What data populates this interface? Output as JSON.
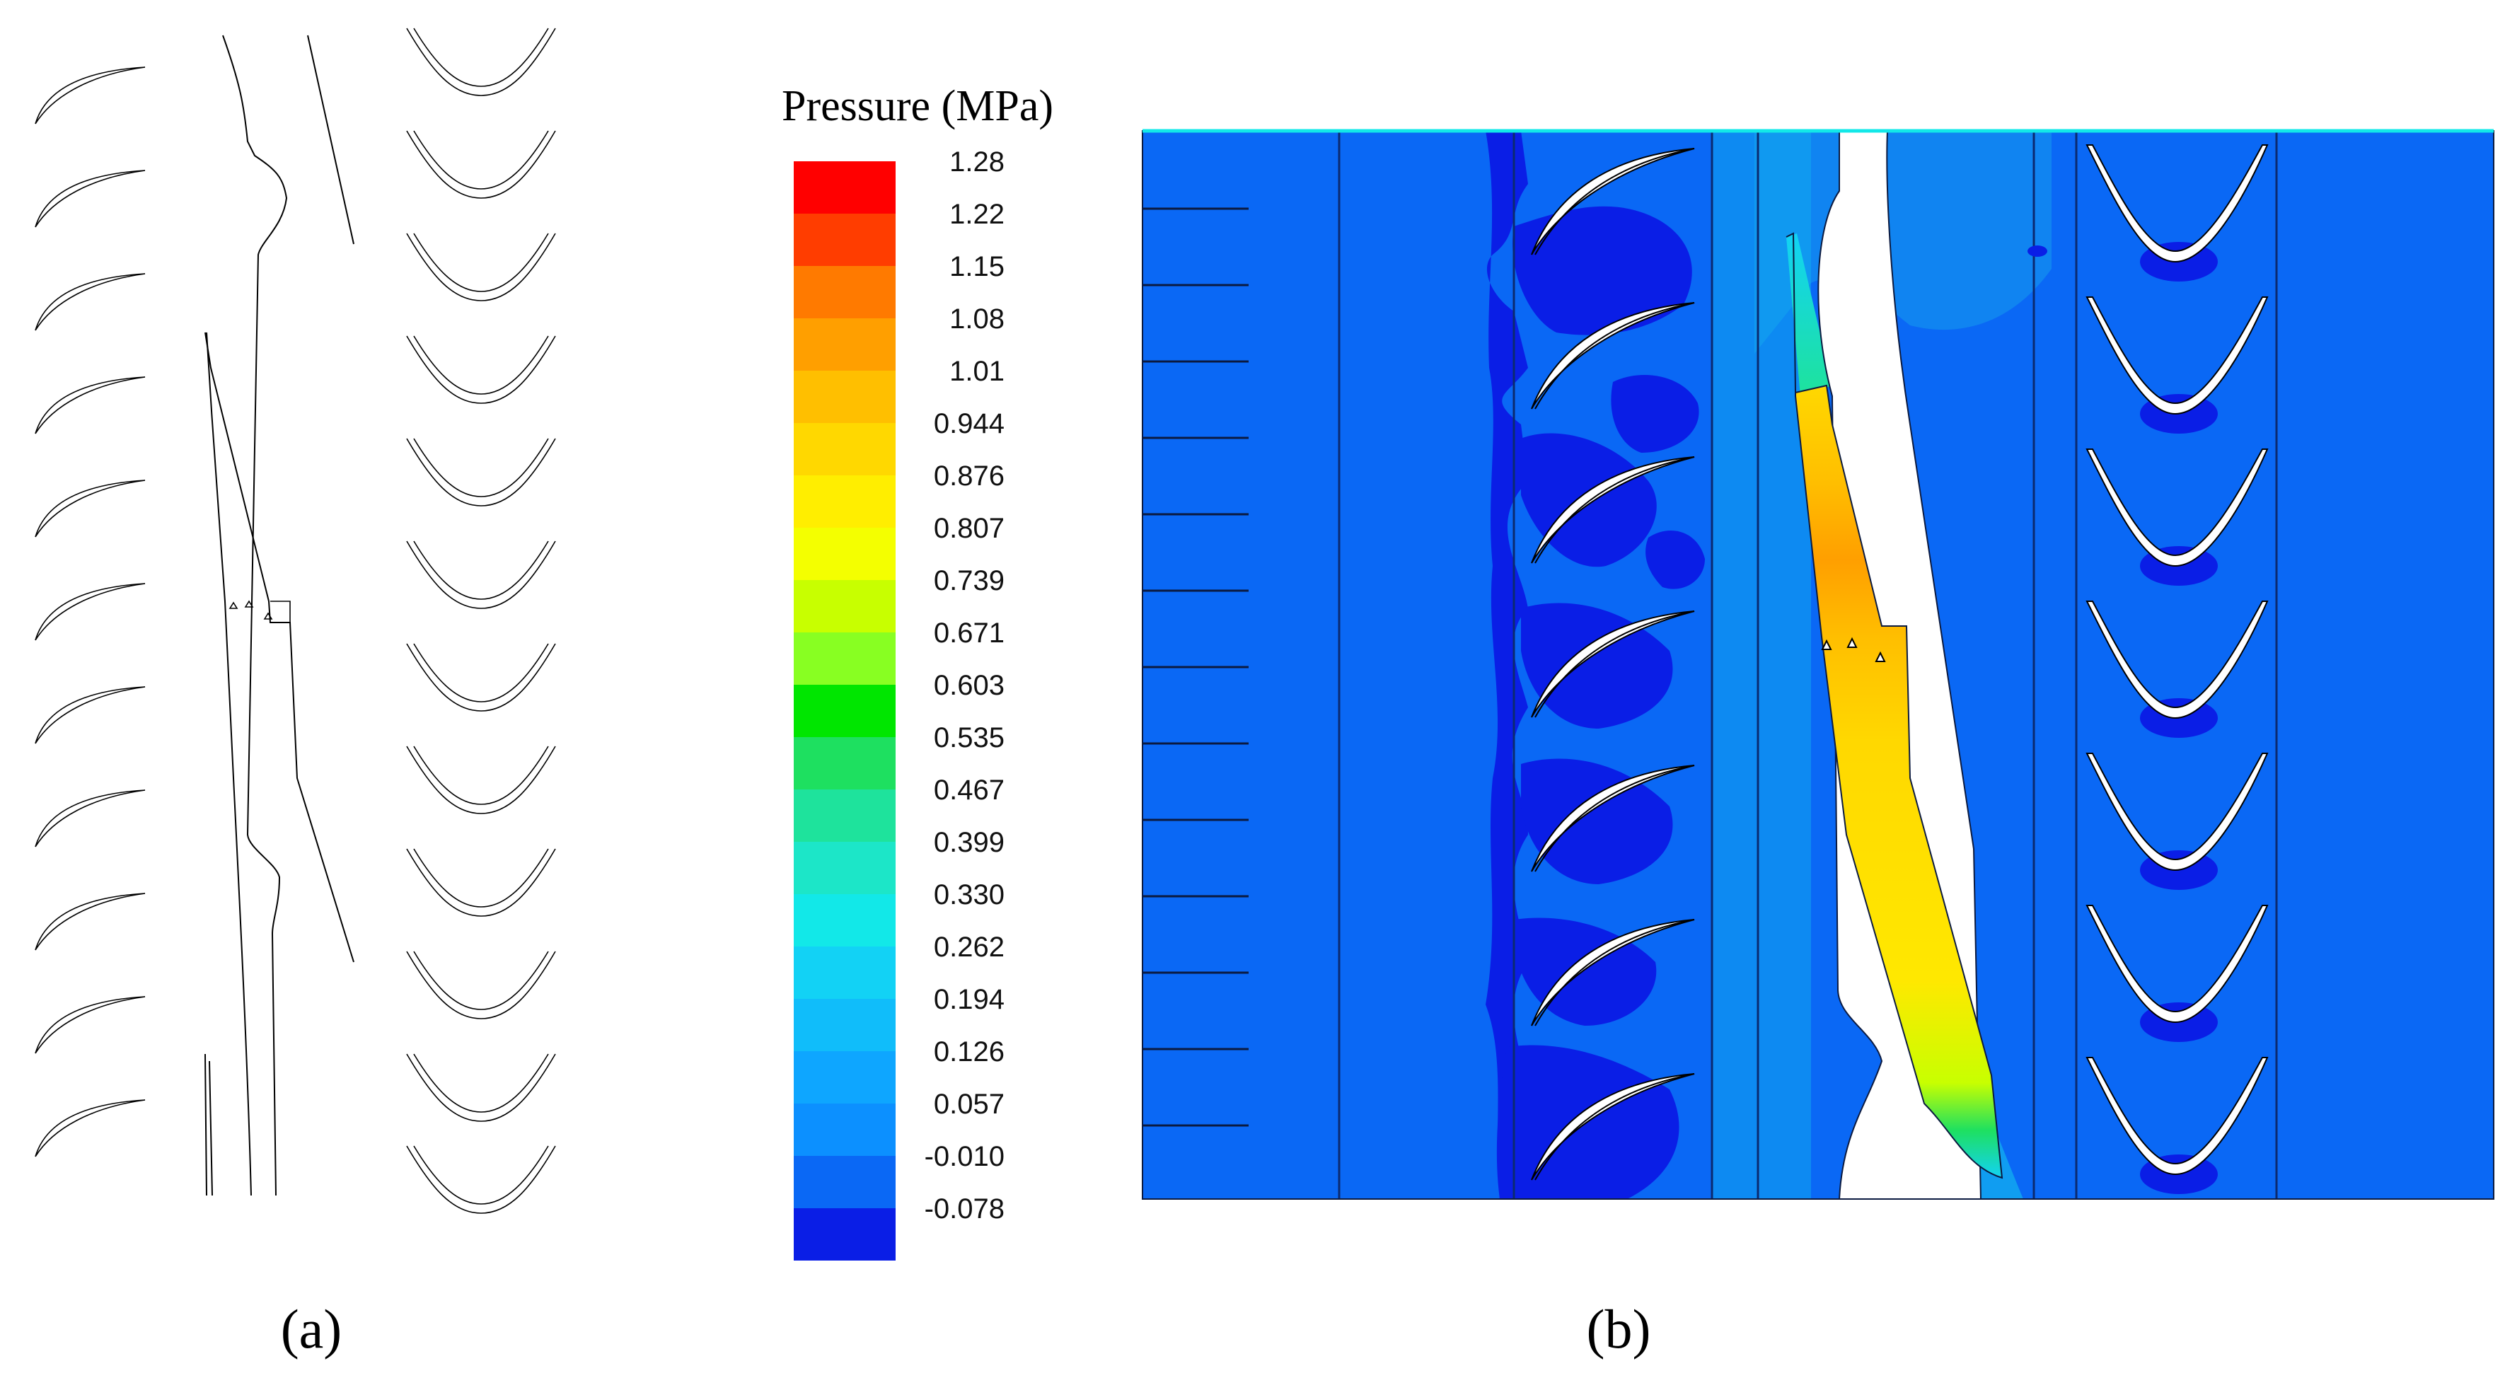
{
  "legend": {
    "title": "Pressure (MPa)",
    "ticks": [
      "1.28",
      "1.22",
      "1.15",
      "1.08",
      "1.01",
      "0.944",
      "0.876",
      "0.807",
      "0.739",
      "0.671",
      "0.603",
      "0.535",
      "0.467",
      "0.399",
      "0.330",
      "0.262",
      "0.194",
      "0.126",
      "0.057",
      "-0.010",
      "-0.078"
    ],
    "colors": [
      "#ff0000",
      "#ff3d00",
      "#ff7a00",
      "#ff9f00",
      "#ffbf00",
      "#ffd800",
      "#ffee00",
      "#f4ff00",
      "#c8ff00",
      "#88ff22",
      "#00e600",
      "#1ee060",
      "#1ee39c",
      "#1ce6c8",
      "#12e8e8",
      "#12d2f5",
      "#10bdfa",
      "#0ea6ff",
      "#0c90ff",
      "#0a68f5",
      "#0a1ee6"
    ]
  },
  "panels": {
    "a": {
      "label": "(a)",
      "letter": "a"
    },
    "b": {
      "label": "(b)",
      "letter": "b"
    }
  },
  "colors": {
    "background_field": "#0a68f5",
    "low_pressure": "#0a1ee6",
    "mid_field": "#12b4f0",
    "gap_high": "#ffd800",
    "gap_peak": "#ff9f00"
  }
}
